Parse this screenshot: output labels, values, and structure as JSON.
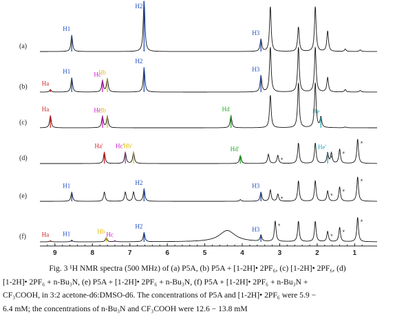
{
  "chart_data": {
    "type": "line",
    "xlabel": "",
    "ylabel": "",
    "x_reversed": true,
    "xlim": [
      9.4,
      0.4
    ],
    "x_ticks": [
      "9",
      "8",
      "7",
      "6",
      "5",
      "4",
      "3",
      "2",
      "1"
    ],
    "x_tick_values": [
      9,
      8,
      7,
      6,
      5,
      4,
      3,
      2,
      1
    ],
    "grid": false,
    "colors": {
      "H1": "#1f4fbf",
      "H2": "#1f4fbf",
      "H3": "#1f4fbf",
      "Ha": "#d62020",
      "Hb": "#e0c000",
      "Hc": "#d020d0",
      "Hd": "#20b020",
      "He": "#20b0c0"
    },
    "series": [
      {
        "name": "(a)",
        "peaks": [
          {
            "x": 8.55,
            "h": 0.8,
            "label": "H1",
            "color": "#1f4fbf"
          },
          {
            "x": 6.62,
            "h": 2.6,
            "label": "H2",
            "color": "#1f4fbf"
          },
          {
            "x": 3.5,
            "h": 0.6,
            "label": "H3",
            "color": "#1f4fbf"
          },
          {
            "x": 3.25,
            "h": 2.2
          },
          {
            "x": 2.5,
            "h": 1.2
          },
          {
            "x": 2.05,
            "h": 2.2
          },
          {
            "x": 1.72,
            "h": 1.0
          },
          {
            "x": 1.25,
            "h": 0.12
          },
          {
            "x": 0.85,
            "h": 0.08
          }
        ]
      },
      {
        "name": "(b)",
        "peaks": [
          {
            "x": 9.12,
            "h": 0.12,
            "label": "Ha",
            "color": "#d62020"
          },
          {
            "x": 8.55,
            "h": 0.7,
            "label": "H1",
            "color": "#1f4fbf"
          },
          {
            "x": 7.73,
            "h": 0.55,
            "label": "Hc",
            "color": "#d020d0"
          },
          {
            "x": 7.6,
            "h": 0.65,
            "label": "Hb",
            "color": "#e0c000"
          },
          {
            "x": 6.62,
            "h": 1.2,
            "label": "H2",
            "color": "#1f4fbf"
          },
          {
            "x": 3.5,
            "h": 0.8,
            "label": "H3",
            "color": "#1f4fbf"
          },
          {
            "x": 3.25,
            "h": 2.2
          },
          {
            "x": 2.5,
            "h": 2.2
          },
          {
            "x": 2.05,
            "h": 2.2
          },
          {
            "x": 1.72,
            "h": 0.7
          },
          {
            "x": 1.25,
            "h": 0.12
          },
          {
            "x": 0.85,
            "h": 0.08
          }
        ]
      },
      {
        "name": "(c)",
        "peaks": [
          {
            "x": 9.12,
            "h": 0.6,
            "label": "Ha",
            "color": "#d62020"
          },
          {
            "x": 7.73,
            "h": 0.55,
            "label": "Hc",
            "color": "#d020d0"
          },
          {
            "x": 7.6,
            "h": 0.55,
            "label": "Hb",
            "color": "#e0c000"
          },
          {
            "x": 4.3,
            "h": 0.6,
            "label": "Hd",
            "color": "#20b020"
          },
          {
            "x": 3.25,
            "h": 1.6
          },
          {
            "x": 2.5,
            "h": 2.2
          },
          {
            "x": 2.05,
            "h": 2.2
          },
          {
            "x": 1.9,
            "h": 0.5,
            "label": "He",
            "color": "#20b0c0"
          },
          {
            "x": 1.25,
            "h": 0.04
          }
        ]
      },
      {
        "name": "(d)",
        "peaks": [
          {
            "x": 7.68,
            "h": 0.55,
            "label": "Ha'",
            "color": "#d62020"
          },
          {
            "x": 7.12,
            "h": 0.55,
            "label": "Hc'",
            "color": "#d020d0"
          },
          {
            "x": 6.9,
            "h": 0.55,
            "label": "Hb'",
            "color": "#e0c000"
          },
          {
            "x": 4.05,
            "h": 0.4,
            "label": "Hd'",
            "color": "#20b020"
          },
          {
            "x": 3.3,
            "h": 0.45
          },
          {
            "x": 3.05,
            "h": 0.4,
            "star": true
          },
          {
            "x": 2.5,
            "h": 1.0
          },
          {
            "x": 2.05,
            "h": 1.0
          },
          {
            "x": 1.72,
            "h": 0.5,
            "label": "He'",
            "color": "#20b0c0",
            "star": true
          },
          {
            "x": 1.62,
            "h": 0.5
          },
          {
            "x": 1.4,
            "h": 0.7,
            "star": true
          },
          {
            "x": 0.92,
            "h": 1.2,
            "star": true
          }
        ]
      },
      {
        "name": "(e)",
        "peaks": [
          {
            "x": 8.55,
            "h": 0.45,
            "label": "H1",
            "color": "#1f4fbf"
          },
          {
            "x": 7.68,
            "h": 0.45
          },
          {
            "x": 7.12,
            "h": 0.45
          },
          {
            "x": 6.9,
            "h": 0.45
          },
          {
            "x": 6.62,
            "h": 0.6,
            "label": "H2",
            "color": "#1f4fbf"
          },
          {
            "x": 4.05,
            "h": 0.08
          },
          {
            "x": 3.5,
            "h": 0.45,
            "label": "H3",
            "color": "#1f4fbf"
          },
          {
            "x": 3.25,
            "h": 0.55
          },
          {
            "x": 3.05,
            "h": 0.35,
            "star": true
          },
          {
            "x": 2.5,
            "h": 1.0
          },
          {
            "x": 2.05,
            "h": 1.0
          },
          {
            "x": 1.72,
            "h": 0.5,
            "star": true
          },
          {
            "x": 1.4,
            "h": 0.7,
            "star": true
          },
          {
            "x": 0.92,
            "h": 1.2,
            "star": true
          }
        ]
      },
      {
        "name": "(f)",
        "peaks": [
          {
            "x": 9.12,
            "h": 0.05,
            "label": "Ha",
            "color": "#d62020"
          },
          {
            "x": 8.55,
            "h": 0.08,
            "label": "H1",
            "color": "#1f4fbf"
          },
          {
            "x": 7.63,
            "h": 0.2,
            "label": "Hb",
            "color": "#e0c000"
          },
          {
            "x": 7.4,
            "h": 0.05,
            "label": "Hc",
            "color": "#d020d0"
          },
          {
            "x": 6.62,
            "h": 0.45,
            "label": "H2",
            "color": "#1f4fbf"
          },
          {
            "x": 4.4,
            "h": 0.55,
            "broad": true
          },
          {
            "x": 3.5,
            "h": 0.3,
            "label": "H3",
            "color": "#1f4fbf"
          },
          {
            "x": 3.12,
            "h": 1.0,
            "star": true
          },
          {
            "x": 2.5,
            "h": 1.0
          },
          {
            "x": 2.05,
            "h": 1.0
          },
          {
            "x": 1.72,
            "h": 0.5,
            "star": true
          },
          {
            "x": 1.4,
            "h": 0.7,
            "star": true
          },
          {
            "x": 0.92,
            "h": 1.2,
            "star": true
          }
        ]
      }
    ]
  },
  "caption": {
    "line1": "Fig. 3 ¹H NMR spectra (500 MHz) of (a) P5A, (b) P5A + [1-2H]• 2PF₆, (c) [1-2H]• 2PF₆, (d)",
    "line2": "[1-2H]• 2PF₆ + n-Bu₃N, (e) P5A + [1-2H]• 2PF₆ + n-Bu₃N, (f) P5A + [1-2H]• 2PF₆ + n-Bu₃N +",
    "line3": "CF₃COOH, in 3:2 acetone-d6:DMSO-d6. The concentrations of P5A and [1-2H]• 2PF₆ were 5.9 −",
    "line4": "6.4 mM; the concentrations of n-Bu₃N and CF₃COOH were 12.6 − 13.8 mM"
  }
}
